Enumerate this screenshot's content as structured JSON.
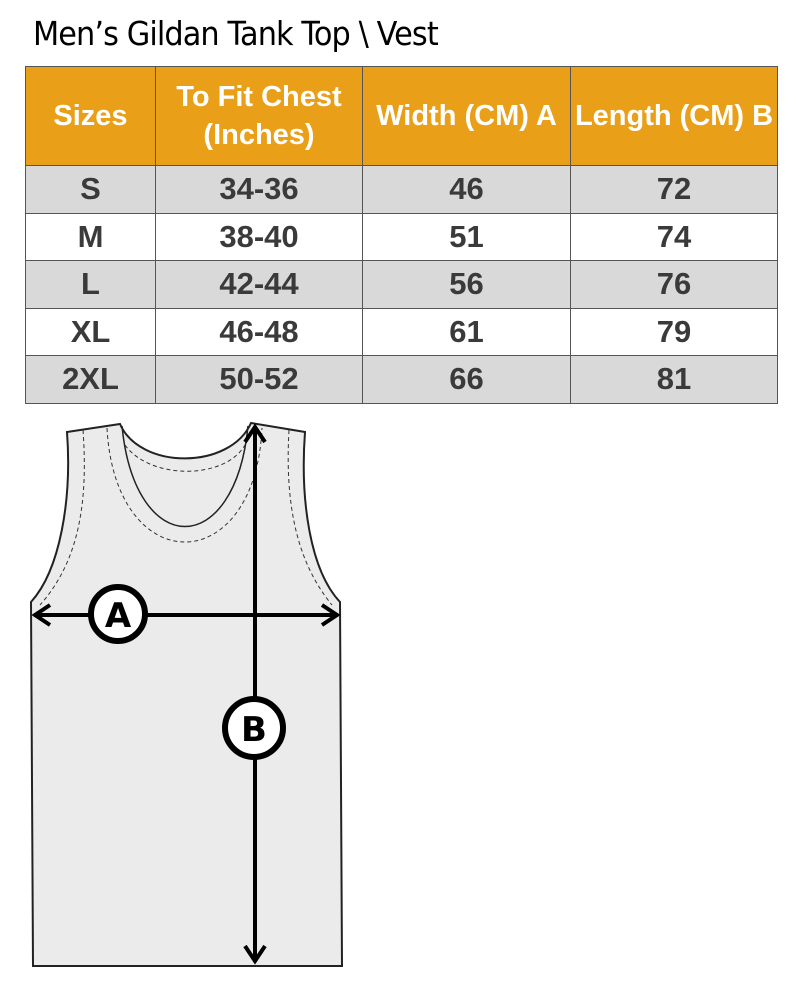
{
  "title": "Men’s Gildan Tank Top \\ Vest",
  "table": {
    "headers": [
      "Sizes",
      "To Fit Chest (Inches)",
      "Width (CM) A",
      "Length  (CM) B"
    ],
    "rows": [
      [
        "S",
        "34-36",
        "46",
        "72"
      ],
      [
        "M",
        "38-40",
        "51",
        "74"
      ],
      [
        "L",
        "42-44",
        "56",
        "76"
      ],
      [
        "XL",
        "46-48",
        "61",
        "79"
      ],
      [
        "2XL",
        "50-52",
        "66",
        "81"
      ]
    ]
  },
  "diagram": {
    "label_a": "A",
    "label_b": "B"
  },
  "colors": {
    "header": "#e99f17",
    "stripe": "#d9d9d9",
    "garment": "#ebebeb"
  }
}
